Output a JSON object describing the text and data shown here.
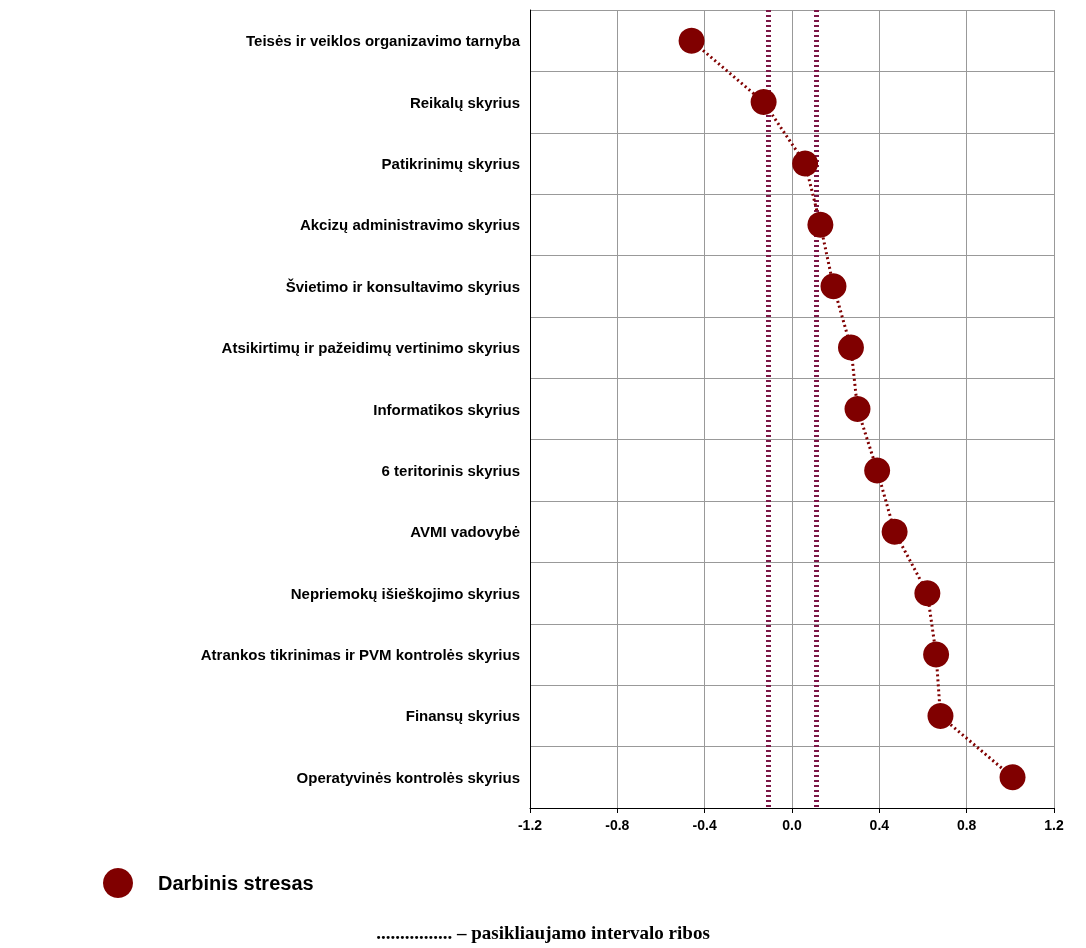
{
  "chart_data": {
    "type": "line",
    "orientation": "horizontal",
    "categories": [
      "Teisės ir veiklos organizavimo tarnyba",
      "Reikalų skyrius",
      "Patikrinimų skyrius",
      "Akcizų administravimo skyrius",
      "Švietimo ir konsultavimo skyrius",
      "Atsikirtimų ir pažeidimų vertinimo skyrius",
      "Informatikos skyrius",
      "6 teritorinis skyrius",
      "AVMI vadovybė",
      "Nepriemokų išieškojimo skyrius",
      "Atrankos tikrinimas ir PVM kontrolės skyrius",
      "Finansų skyrius",
      "Operatyvinės kontrolės skyrius"
    ],
    "series": [
      {
        "name": "Darbinis stresas",
        "color": "#800000",
        "values": [
          -0.46,
          -0.13,
          0.06,
          0.13,
          0.19,
          0.27,
          0.3,
          0.39,
          0.47,
          0.62,
          0.66,
          0.68,
          1.01
        ]
      }
    ],
    "xlim": [
      -1.2,
      1.2
    ],
    "xticks": [
      {
        "value": -1.2,
        "label": "-1.2"
      },
      {
        "value": -0.8,
        "label": "-0.8"
      },
      {
        "value": -0.4,
        "label": "-0.4"
      },
      {
        "value": 0,
        "label": "0.0"
      },
      {
        "value": 0.4,
        "label": "0.4"
      },
      {
        "value": 0.8,
        "label": "0.8"
      },
      {
        "value": 1.2,
        "label": "1.2"
      }
    ],
    "ref_lines": [
      {
        "axis": "x",
        "value": -0.11,
        "color": "#7b1646",
        "line_style": "dotted"
      },
      {
        "axis": "x",
        "value": 0.11,
        "color": "#7b1646",
        "line_style": "dotted"
      }
    ],
    "annotations": [
      "................ – pasikliaujamo intervalo ribos"
    ],
    "grid": true,
    "legend": "bottom left",
    "marker": "circle",
    "line_style": "dotted"
  }
}
